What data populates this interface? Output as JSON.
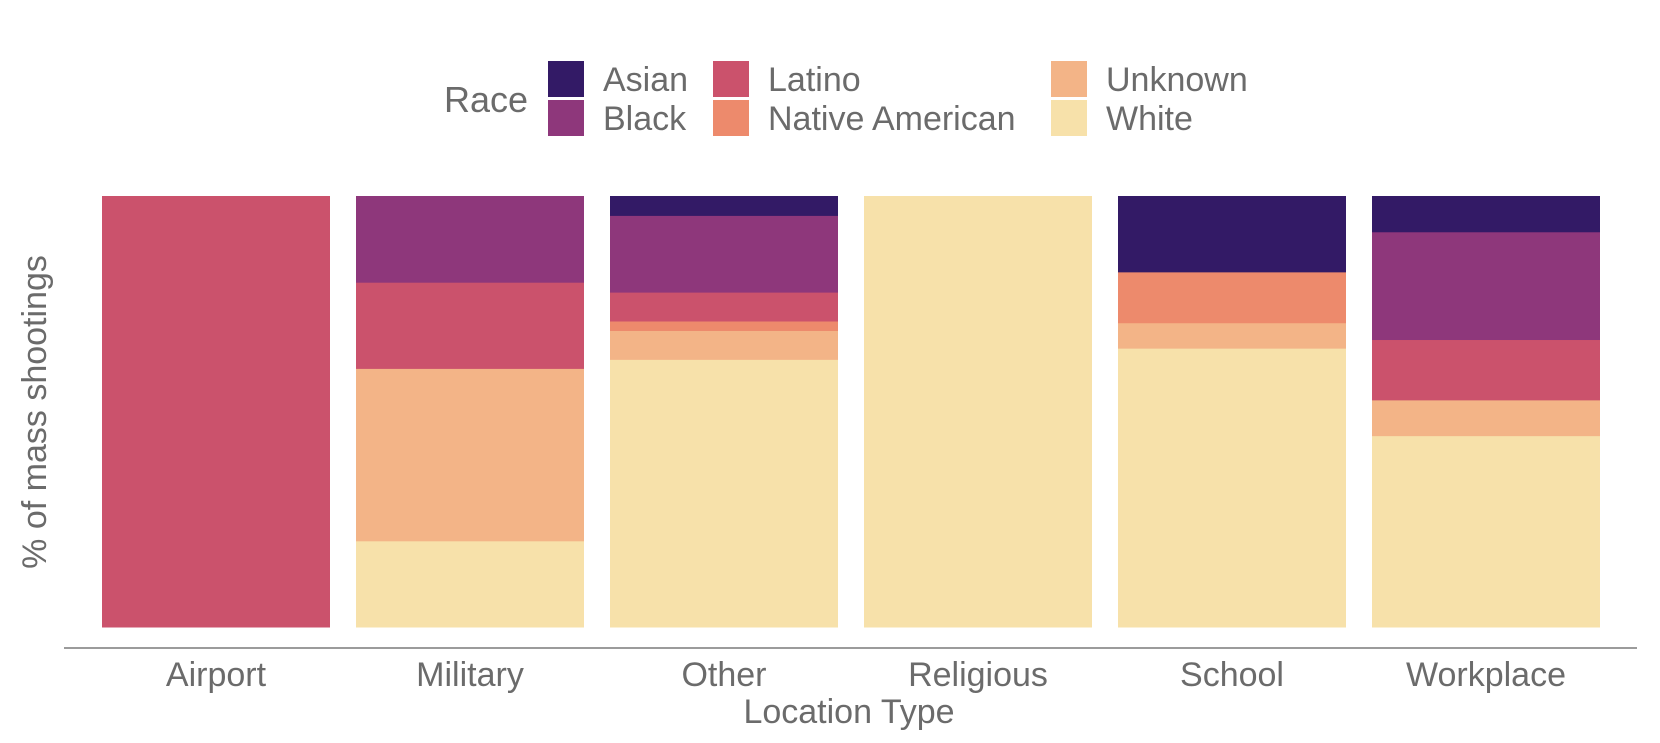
{
  "chart_data": {
    "type": "bar",
    "stacked": true,
    "normalized": true,
    "xlabel": "Location Type",
    "ylabel": "% of mass shootings",
    "ylim": [
      0,
      1
    ],
    "grid": false,
    "y_ticks_shown": false,
    "legend": {
      "title": "Race",
      "placement": "top-center",
      "items": [
        "Asian",
        "Black",
        "Latino",
        "Native American",
        "Unknown",
        "White"
      ]
    },
    "categories": [
      "Airport",
      "Military",
      "Other",
      "Religious",
      "School",
      "Workplace"
    ],
    "series": [
      {
        "name": "Asian",
        "color": "#331a66",
        "values": [
          0.0,
          0.0,
          0.045,
          0.0,
          0.176,
          0.083
        ]
      },
      {
        "name": "Black",
        "color": "#8e377b",
        "values": [
          0.0,
          0.2,
          0.178,
          0.0,
          0.0,
          0.25
        ]
      },
      {
        "name": "Latino",
        "color": "#cb526c",
        "values": [
          1.0,
          0.2,
          0.067,
          0.0,
          0.0,
          0.14
        ]
      },
      {
        "name": "Native American",
        "color": "#ed8a6c",
        "values": [
          0.0,
          0.0,
          0.022,
          0.0,
          0.118,
          0.0
        ]
      },
      {
        "name": "Unknown",
        "color": "#f3b487",
        "values": [
          0.0,
          0.4,
          0.067,
          0.0,
          0.059,
          0.083
        ]
      },
      {
        "name": "White",
        "color": "#f7e1aa",
        "values": [
          0.0,
          0.2,
          0.621,
          1.0,
          0.647,
          0.444
        ]
      }
    ]
  }
}
